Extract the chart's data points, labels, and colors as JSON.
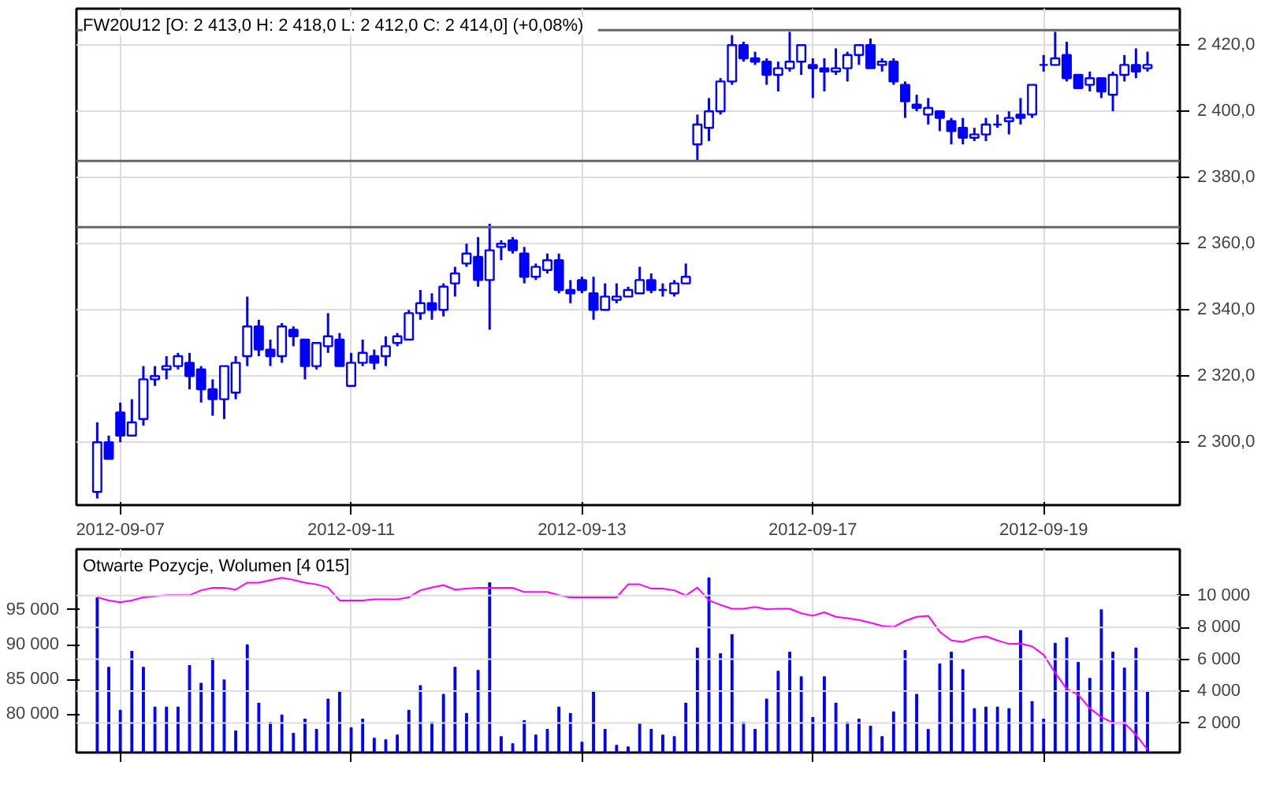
{
  "chart_data": [
    {
      "type": "candlestick",
      "title": "FW20U12 [O: 2 413,0  H: 2 418,0  L: 2 412,0  C: 2 414,0] (+0,08%)",
      "categories": [
        null,
        null,
        "2012-09-07",
        null,
        null,
        null,
        null,
        null,
        null,
        null,
        null,
        null,
        null,
        null,
        null,
        null,
        null,
        null,
        null,
        null,
        null,
        null,
        "2012-09-11",
        null,
        null,
        null,
        null,
        null,
        null,
        null,
        null,
        null,
        null,
        null,
        null,
        null,
        null,
        null,
        null,
        null,
        null,
        null,
        "2012-09-13",
        null,
        null,
        null,
        null,
        null,
        null,
        null,
        null,
        null,
        null,
        null,
        null,
        null,
        null,
        null,
        null,
        null,
        null,
        null,
        "2012-09-17",
        null,
        null,
        null,
        null,
        null,
        null,
        null,
        null,
        null,
        null,
        null,
        null,
        null,
        null,
        null,
        null,
        null,
        null,
        null,
        "2012-09-19",
        null,
        null,
        null,
        null,
        null,
        null,
        null,
        null,
        null
      ],
      "series": [
        {
          "color": "#0000ff",
          "ohlc": [
            [
              2285,
              2306,
              2283,
              2300
            ],
            [
              2300,
              2302,
              2295,
              2295
            ],
            [
              2309,
              2312,
              2300,
              2302
            ],
            [
              2302,
              2313,
              2302,
              2306
            ],
            [
              2307,
              2323,
              2305,
              2319
            ],
            [
              2319,
              2323,
              2317,
              2320
            ],
            [
              2322,
              2326,
              2319,
              2323
            ],
            [
              2323,
              2327,
              2322,
              2326
            ],
            [
              2324,
              2327,
              2316,
              2320
            ],
            [
              2322,
              2323,
              2312,
              2316
            ],
            [
              2316,
              2319,
              2308,
              2313
            ],
            [
              2313,
              2323,
              2307,
              2323
            ],
            [
              2315,
              2326,
              2313,
              2324
            ],
            [
              2326,
              2344,
              2323,
              2335
            ],
            [
              2335,
              2337,
              2326,
              2328
            ],
            [
              2328,
              2331,
              2323,
              2326
            ],
            [
              2326,
              2336,
              2324,
              2335
            ],
            [
              2334,
              2335,
              2329,
              2332
            ],
            [
              2331,
              2331,
              2319,
              2323
            ],
            [
              2323,
              2330,
              2322,
              2330
            ],
            [
              2329,
              2339,
              2327,
              2332
            ],
            [
              2331,
              2333,
              2323,
              2323
            ],
            [
              2317,
              2327,
              2317,
              2324
            ],
            [
              2324,
              2331,
              2323,
              2327
            ],
            [
              2326,
              2328,
              2322,
              2324
            ],
            [
              2326,
              2332,
              2323,
              2329
            ],
            [
              2330,
              2333,
              2329,
              2332
            ],
            [
              2331,
              2340,
              2331,
              2339
            ],
            [
              2339,
              2346,
              2337,
              2342
            ],
            [
              2342,
              2345,
              2337,
              2340
            ],
            [
              2340,
              2348,
              2338,
              2347
            ],
            [
              2348,
              2353,
              2344,
              2351
            ],
            [
              2354,
              2360,
              2353,
              2357
            ],
            [
              2356,
              2362,
              2347,
              2349
            ],
            [
              2349,
              2366,
              2334,
              2358
            ],
            [
              2359,
              2361,
              2355,
              2360
            ],
            [
              2361,
              2362,
              2357,
              2358
            ],
            [
              2357,
              2359,
              2348,
              2350
            ],
            [
              2350,
              2354,
              2349,
              2353
            ],
            [
              2352,
              2357,
              2351,
              2355
            ],
            [
              2355,
              2357,
              2345,
              2346
            ],
            [
              2346,
              2349,
              2342,
              2345
            ],
            [
              2349,
              2350,
              2345,
              2346
            ],
            [
              2345,
              2350,
              2337,
              2340
            ],
            [
              2340,
              2348,
              2340,
              2344
            ],
            [
              2343,
              2348,
              2342,
              2344
            ],
            [
              2344,
              2347,
              2344,
              2346
            ],
            [
              2345,
              2353,
              2345,
              2349
            ],
            [
              2349,
              2351,
              2345,
              2346
            ],
            [
              2346,
              2348,
              2344,
              2346
            ],
            [
              2345,
              2349,
              2344,
              2348
            ],
            [
              2348,
              2354,
              2348,
              2350
            ],
            [
              2390,
              2399,
              2385,
              2396
            ],
            [
              2395,
              2404,
              2391,
              2400
            ],
            [
              2400,
              2410,
              2399,
              2409
            ],
            [
              2409,
              2423,
              2408,
              2420
            ],
            [
              2420,
              2421,
              2415,
              2416
            ],
            [
              2416,
              2418,
              2414,
              2415
            ],
            [
              2415,
              2416,
              2408,
              2411
            ],
            [
              2411,
              2415,
              2406,
              2413
            ],
            [
              2413,
              2424,
              2412,
              2415
            ],
            [
              2415,
              2420,
              2411,
              2420
            ],
            [
              2414,
              2416,
              2404,
              2413
            ],
            [
              2413,
              2416,
              2406,
              2412
            ],
            [
              2412,
              2419,
              2411,
              2413
            ],
            [
              2413,
              2418,
              2409,
              2417
            ],
            [
              2417,
              2420,
              2414,
              2420
            ],
            [
              2420,
              2422,
              2413,
              2413
            ],
            [
              2414,
              2416,
              2412,
              2415
            ],
            [
              2415,
              2416,
              2408,
              2409
            ],
            [
              2408,
              2409,
              2398,
              2403
            ],
            [
              2402,
              2405,
              2400,
              2401
            ],
            [
              2399,
              2404,
              2396,
              2401
            ],
            [
              2400,
              2400,
              2394,
              2398
            ],
            [
              2397,
              2398,
              2390,
              2394
            ],
            [
              2395,
              2398,
              2390,
              2392
            ],
            [
              2392,
              2395,
              2391,
              2393
            ],
            [
              2393,
              2398,
              2391,
              2396
            ],
            [
              2396,
              2399,
              2395,
              2396
            ],
            [
              2397,
              2400,
              2393,
              2398
            ],
            [
              2399,
              2404,
              2396,
              2398
            ],
            [
              2399,
              2408,
              2398,
              2408
            ],
            [
              2414,
              2417,
              2412,
              2414
            ],
            [
              2414,
              2424,
              2414,
              2416
            ],
            [
              2417,
              2421,
              2409,
              2410
            ],
            [
              2411,
              2411,
              2407,
              2407
            ],
            [
              2408,
              2412,
              2406,
              2410
            ],
            [
              2410,
              2410,
              2404,
              2406
            ],
            [
              2405,
              2412,
              2400,
              2411
            ],
            [
              2411,
              2417,
              2409,
              2414
            ],
            [
              2414,
              2419,
              2410,
              2412
            ],
            [
              2413,
              2418,
              2412,
              2414
            ]
          ]
        }
      ],
      "ylim": [
        2281,
        2431
      ],
      "yticks": [
        {
          "value": 2300,
          "label": "2 300,0"
        },
        {
          "value": 2320,
          "label": "2 320,0"
        },
        {
          "value": 2340,
          "label": "2 340,0"
        },
        {
          "value": 2360,
          "label": "2 360,0"
        },
        {
          "value": 2380,
          "label": "2 380,0"
        },
        {
          "value": 2400,
          "label": "2 400,0"
        },
        {
          "value": 2420,
          "label": "2 420,0"
        }
      ],
      "ref_lines": [
        {
          "axis": "y",
          "value": 2424.5,
          "color": "#666666"
        },
        {
          "axis": "y",
          "value": 2385,
          "color": "#666666"
        },
        {
          "axis": "y",
          "value": 2365,
          "color": "#666666"
        }
      ],
      "grid": true
    },
    {
      "type": "bar",
      "title": "Otwarte Pozycje, Wolumen [4 015]",
      "categories": [
        null,
        null,
        "2012-09-07",
        null,
        null,
        null,
        null,
        null,
        null,
        null,
        null,
        null,
        null,
        null,
        null,
        null,
        null,
        null,
        null,
        null,
        null,
        null,
        "2012-09-11",
        null,
        null,
        null,
        null,
        null,
        null,
        null,
        null,
        null,
        null,
        null,
        null,
        null,
        null,
        null,
        null,
        null,
        null,
        null,
        "2012-09-13",
        null,
        null,
        null,
        null,
        null,
        null,
        null,
        null,
        null,
        null,
        null,
        null,
        null,
        null,
        null,
        null,
        null,
        null,
        null,
        "2012-09-17",
        null,
        null,
        null,
        null,
        null,
        null,
        null,
        null,
        null,
        null,
        null,
        null,
        null,
        null,
        null,
        null,
        null,
        null,
        null,
        "2012-09-19",
        null,
        null,
        null,
        null,
        null,
        null,
        null,
        null,
        null
      ],
      "series": [
        {
          "type": "bar",
          "axis": "y2",
          "color": "#0000ff",
          "values": [
            9850,
            5500,
            2800,
            6500,
            5500,
            3000,
            3000,
            3000,
            5600,
            4500,
            6050,
            4700,
            1500,
            6900,
            3250,
            2050,
            2500,
            1350,
            2250,
            1600,
            3500,
            4000,
            1700,
            2250,
            1050,
            950,
            1250,
            2800,
            4350,
            2050,
            3800,
            5500,
            2600,
            5300,
            10800,
            1150,
            700,
            2150,
            1250,
            1600,
            3000,
            2600,
            800,
            4000,
            1600,
            600,
            500,
            1950,
            1600,
            1250,
            1150,
            3250,
            6700,
            11100,
            6350,
            7550,
            2050,
            1600,
            3500,
            5250,
            6450,
            4900,
            2350,
            4900,
            3250,
            2050,
            2250,
            1800,
            1150,
            2700,
            6550,
            3800,
            1600,
            5700,
            6450,
            5350,
            2900,
            3000,
            3000,
            2900,
            7800,
            3350,
            2250,
            7000,
            7350,
            5800,
            4800,
            9100,
            6450,
            5450,
            6700,
            4015
          ]
        },
        {
          "type": "line",
          "axis": "y",
          "color": "#ff00ff",
          "values": [
            96800,
            96350,
            96100,
            96350,
            96800,
            96950,
            97100,
            97100,
            97100,
            97800,
            98150,
            98150,
            97900,
            98900,
            98900,
            99250,
            99600,
            99300,
            98900,
            98650,
            98200,
            96350,
            96350,
            96350,
            96500,
            96500,
            96500,
            96800,
            97800,
            98200,
            98550,
            97900,
            98050,
            98150,
            98150,
            98150,
            98150,
            97550,
            97550,
            97550,
            97100,
            96800,
            96800,
            96800,
            96800,
            96800,
            98650,
            98650,
            98050,
            98050,
            97800,
            97050,
            98200,
            96350,
            95700,
            95150,
            95150,
            95400,
            95100,
            95150,
            95150,
            94500,
            94150,
            94650,
            94000,
            93800,
            93550,
            93150,
            92700,
            92550,
            93400,
            94000,
            94150,
            91850,
            90600,
            90400,
            90950,
            91200,
            90600,
            90100,
            90150,
            89750,
            88550,
            85950,
            83650,
            82800,
            80850,
            79600,
            78750,
            78750,
            77050,
            74900
          ]
        }
      ],
      "ylim": [
        74500,
        103700
      ],
      "yticks": [
        {
          "value": 80000,
          "label": "80 000"
        },
        {
          "value": 85000,
          "label": "85 000"
        },
        {
          "value": 90000,
          "label": "90 000"
        },
        {
          "value": 95000,
          "label": "95 000"
        }
      ],
      "y2lim": [
        150,
        12900
      ],
      "y2ticks": [
        {
          "value": 2000,
          "label": "2 000"
        },
        {
          "value": 4000,
          "label": "4 000"
        },
        {
          "value": 6000,
          "label": "6 000"
        },
        {
          "value": 8000,
          "label": "8 000"
        },
        {
          "value": 10000,
          "label": "10 000"
        }
      ],
      "tick_labels": "y",
      "grid": true
    }
  ]
}
